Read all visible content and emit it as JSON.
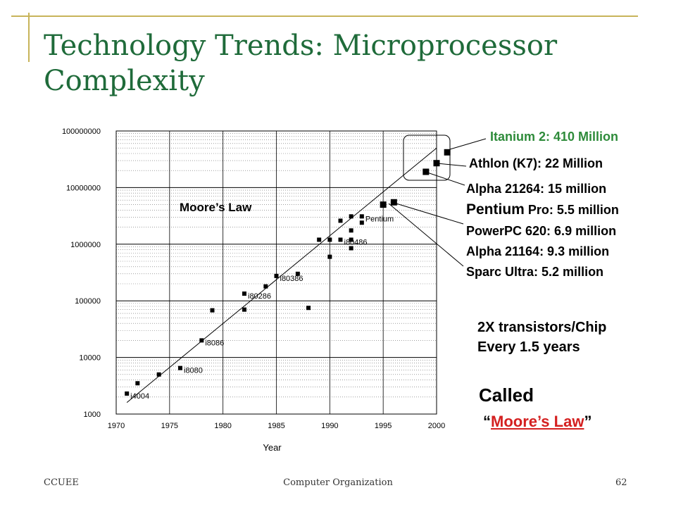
{
  "title": "Technology Trends: Microprocessor Complexity",
  "chart_data": {
    "type": "scatter",
    "xlabel": "Year",
    "ylabel": "",
    "xlim": [
      1970,
      2000
    ],
    "ylim": [
      1000,
      100000000
    ],
    "yscale": "log",
    "grid": true,
    "x_ticks": [
      "1970",
      "1975",
      "1980",
      "1985",
      "1990",
      "1995",
      "2000"
    ],
    "y_ticks": [
      "1000",
      "10000",
      "100000",
      "1000000",
      "10000000",
      "100000000"
    ],
    "trend_label": "Moore’s Law",
    "trend_line": [
      [
        1971,
        1600
      ],
      [
        2000,
        50000000
      ]
    ],
    "points": [
      {
        "x": 1971,
        "y": 2300,
        "label": "i4004"
      },
      {
        "x": 1972,
        "y": 3500,
        "label": ""
      },
      {
        "x": 1974,
        "y": 5000,
        "label": ""
      },
      {
        "x": 1976,
        "y": 6500,
        "label": "i8080"
      },
      {
        "x": 1978,
        "y": 20000,
        "label": "i8086"
      },
      {
        "x": 1979,
        "y": 68000,
        "label": ""
      },
      {
        "x": 1982,
        "y": 70000,
        "label": ""
      },
      {
        "x": 1982,
        "y": 134000,
        "label": "i80286"
      },
      {
        "x": 1984,
        "y": 180000,
        "label": ""
      },
      {
        "x": 1985,
        "y": 275000,
        "label": "i80386"
      },
      {
        "x": 1987,
        "y": 300000,
        "label": ""
      },
      {
        "x": 1988,
        "y": 75000,
        "label": ""
      },
      {
        "x": 1989,
        "y": 1200000,
        "label": ""
      },
      {
        "x": 1990,
        "y": 1200000,
        "label": ""
      },
      {
        "x": 1990,
        "y": 600000,
        "label": ""
      },
      {
        "x": 1991,
        "y": 1200000,
        "label": "i80486"
      },
      {
        "x": 1991,
        "y": 2600000,
        "label": ""
      },
      {
        "x": 1992,
        "y": 3100000,
        "label": ""
      },
      {
        "x": 1992,
        "y": 1750000,
        "label": ""
      },
      {
        "x": 1992,
        "y": 1200000,
        "label": ""
      },
      {
        "x": 1992,
        "y": 850000,
        "label": ""
      },
      {
        "x": 1993,
        "y": 3100000,
        "label": "Pentium"
      },
      {
        "x": 1993,
        "y": 2400000,
        "label": ""
      },
      {
        "x": 1995,
        "y": 5000000,
        "label": ""
      },
      {
        "x": 1996,
        "y": 5500000,
        "label": ""
      },
      {
        "x": 1999,
        "y": 19000000,
        "label": ""
      },
      {
        "x": 2000,
        "y": 27000000,
        "label": ""
      },
      {
        "x": 2001,
        "y": 42000000,
        "label": ""
      }
    ]
  },
  "callouts": {
    "itanium": "Itanium 2: 410 Million",
    "athlon": "Athlon (K7): 22 Million",
    "alpha21264": "Alpha 21264: 15 million",
    "pentium_pro_a": "Pentium",
    "pentium_pro_b": " Pro: 5.5 million",
    "powerpc": "PowerPC 620: 6.9 million",
    "alpha21164": "Alpha 21164: 9.3 million",
    "sparc": "Sparc Ultra: 5.2 million"
  },
  "notes": {
    "line1": "2X transistors/Chip",
    "line2": "Every 1.5 years",
    "called": "Called",
    "quote_open": "“",
    "law": "Moore’s Law",
    "quote_close": "”"
  },
  "footer": {
    "left": "CCUEE",
    "center": "Computer Organization",
    "right": "62"
  },
  "colors": {
    "title": "#1f6b3a",
    "accent_green": "#2e8b3a",
    "law_red": "#d42020",
    "decor": "#c8b45a"
  }
}
